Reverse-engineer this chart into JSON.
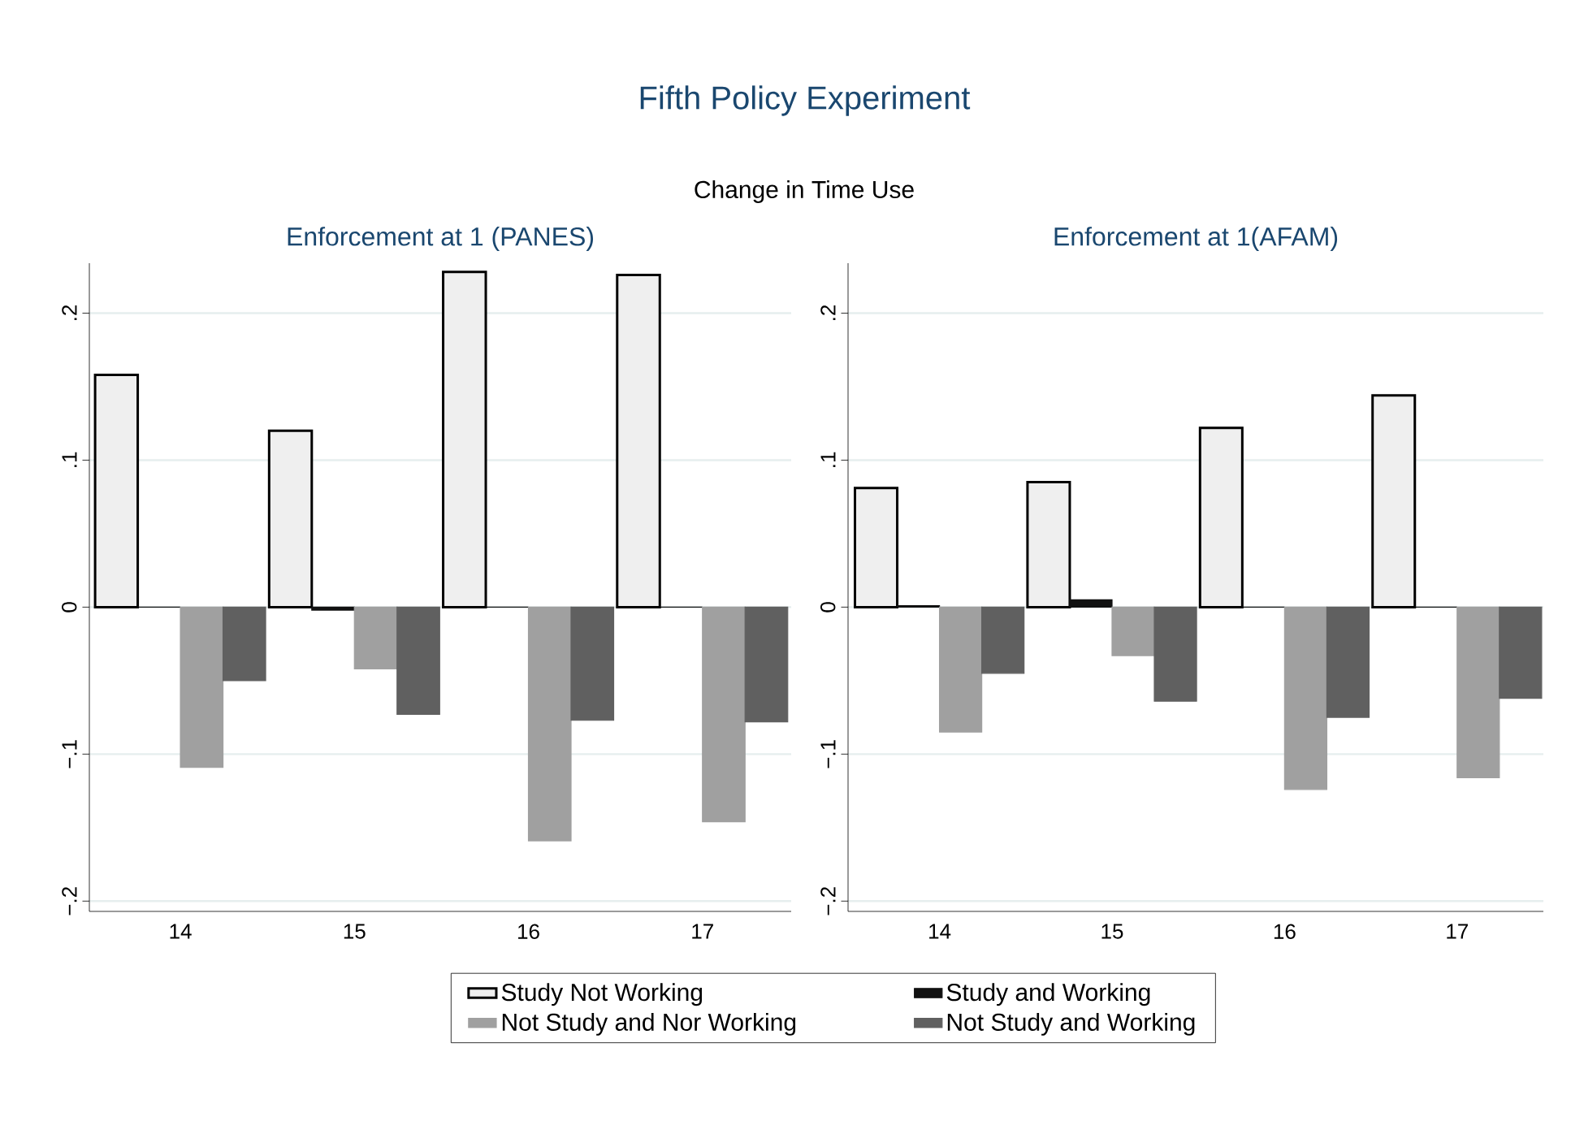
{
  "chart_data": [
    {
      "type": "bar",
      "title": "Enforcement at 1 (PANES)",
      "annotations": [
        "Fifth Policy Experiment",
        "Change in Time Use"
      ],
      "categories": [
        "14",
        "15",
        "16",
        "17"
      ],
      "series": [
        {
          "name": "Study Not Working",
          "color": "#efefef",
          "values": [
            0.158,
            0.12,
            0.228,
            0.226
          ]
        },
        {
          "name": "Study and Working",
          "color": "#111111",
          "values": [
            0.0,
            -0.002,
            0.0,
            0.0
          ]
        },
        {
          "name": "Not Study and Nor Working",
          "color": "#a0a0a0",
          "values": [
            -0.109,
            -0.042,
            -0.159,
            -0.146
          ]
        },
        {
          "name": "Not Study and Working",
          "color": "#606060",
          "values": [
            -0.05,
            -0.073,
            -0.077,
            -0.078
          ]
        }
      ],
      "ylim": [
        -0.207,
        0.234
      ],
      "yticks": [
        {
          "value": -0.2,
          "label": "−.2"
        },
        {
          "value": -0.1,
          "label": "−.1"
        },
        0,
        {
          "value": 0.1,
          "label": ".1"
        },
        {
          "value": 0.2,
          "label": ".2"
        }
      ],
      "grid": "y",
      "legend": "bottom"
    },
    {
      "type": "bar",
      "title": "Enforcement at 1(AFAM)",
      "categories": [
        "14",
        "15",
        "16",
        "17"
      ],
      "series": [
        {
          "color": "#efefef",
          "values": [
            0.081,
            0.085,
            0.122,
            0.144
          ]
        },
        {
          "color": "#111111",
          "values": [
            0.001,
            0.005,
            0.0,
            0.0
          ]
        },
        {
          "color": "#a0a0a0",
          "values": [
            -0.085,
            -0.033,
            -0.124,
            -0.116
          ]
        },
        {
          "color": "#606060",
          "values": [
            -0.045,
            -0.064,
            -0.075,
            -0.062
          ]
        }
      ],
      "ylim": [
        -0.207,
        0.234
      ],
      "yticks": [
        {
          "value": -0.2,
          "label": "−.2"
        },
        {
          "value": -0.1,
          "label": "−.1"
        },
        0,
        {
          "value": 0.1,
          "label": ".1"
        },
        {
          "value": 0.2,
          "label": ".2"
        }
      ],
      "grid": "y"
    }
  ]
}
